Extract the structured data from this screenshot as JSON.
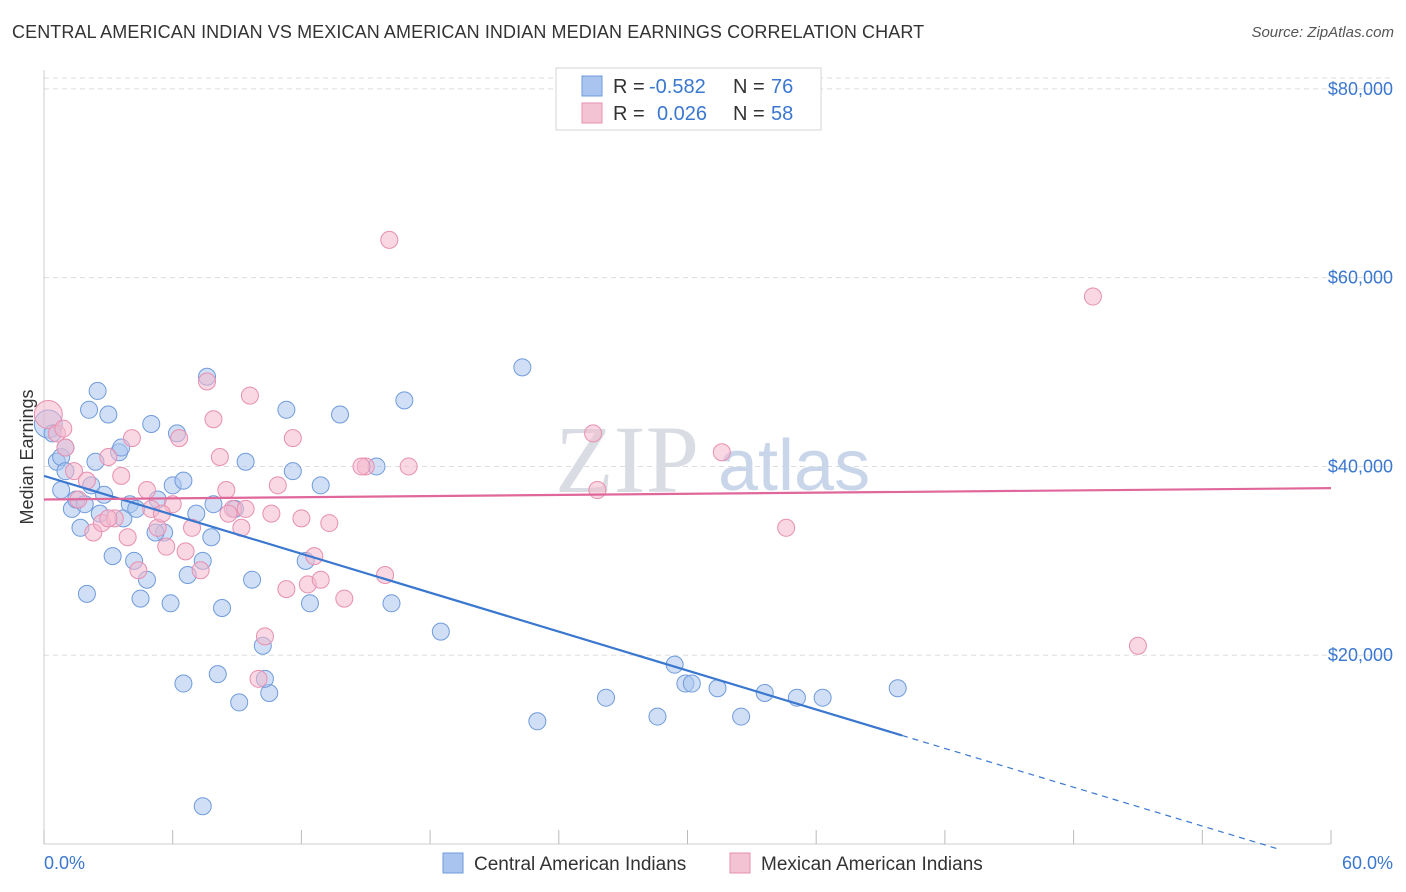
{
  "title": "CENTRAL AMERICAN INDIAN VS MEXICAN AMERICAN INDIAN MEDIAN EARNINGS CORRELATION CHART",
  "source": "Source: ZipAtlas.com",
  "watermark": {
    "zip": "ZIP",
    "atlas": "atlas"
  },
  "colors": {
    "blue": "#3a77cf",
    "blue_fill": "#a9c4ee",
    "pink": "#e0679a",
    "pink_fill": "#f4b8cc",
    "grid": "#dddddd"
  },
  "legend": {
    "rows": [
      {
        "r_label": "R =",
        "r_value": "-0.582",
        "n_label": "N =",
        "n_value": "76"
      },
      {
        "r_label": "R =",
        "r_value": "0.026",
        "n_label": "N =",
        "n_value": "58"
      }
    ]
  },
  "bottom_legend": [
    "Central American Indians",
    "Mexican American Indians"
  ],
  "chart_data": {
    "type": "scatter",
    "title": "CENTRAL AMERICAN INDIAN VS MEXICAN AMERICAN INDIAN MEDIAN EARNINGS CORRELATION CHART",
    "xlabel": "",
    "ylabel": "Median Earnings",
    "x_tick_labels": [
      "0.0%",
      "60.0%"
    ],
    "y_tick_labels": [
      "$20,000",
      "$40,000",
      "$60,000",
      "$80,000"
    ],
    "xlim": [
      0,
      60
    ],
    "ylim": [
      0,
      82000
    ],
    "grid": true,
    "legend_position": "top-center",
    "series": [
      {
        "name": "Central American Indians",
        "r": -0.582,
        "n": 76,
        "trend": {
          "x0": 0,
          "y0": 39000,
          "x1": 40,
          "y1": 11500,
          "dashed_to_x": 57.5,
          "dashed_to_y": -500
        },
        "points": [
          [
            0.2,
            44500
          ],
          [
            0.4,
            43500
          ],
          [
            0.6,
            40500
          ],
          [
            0.8,
            41000
          ],
          [
            1.0,
            39500
          ],
          [
            1.3,
            35500
          ],
          [
            1.5,
            36500
          ],
          [
            1.7,
            33500
          ],
          [
            1.9,
            36000
          ],
          [
            2.1,
            46000
          ],
          [
            2.4,
            40500
          ],
          [
            2.6,
            35000
          ],
          [
            2.8,
            37000
          ],
          [
            3.0,
            45500
          ],
          [
            3.2,
            30500
          ],
          [
            3.5,
            41500
          ],
          [
            3.7,
            34500
          ],
          [
            4.0,
            36000
          ],
          [
            4.2,
            30000
          ],
          [
            4.5,
            26000
          ],
          [
            4.8,
            28000
          ],
          [
            5.0,
            44500
          ],
          [
            5.3,
            36500
          ],
          [
            5.6,
            33000
          ],
          [
            5.9,
            25500
          ],
          [
            6.2,
            43500
          ],
          [
            6.5,
            17000
          ],
          [
            6.7,
            28500
          ],
          [
            7.1,
            35000
          ],
          [
            7.4,
            30000
          ],
          [
            7.6,
            49500
          ],
          [
            7.8,
            32500
          ],
          [
            8.1,
            18000
          ],
          [
            8.3,
            25000
          ],
          [
            8.9,
            35500
          ],
          [
            9.1,
            15000
          ],
          [
            9.4,
            40500
          ],
          [
            9.7,
            28000
          ],
          [
            10.2,
            21000
          ],
          [
            10.5,
            16000
          ],
          [
            11.3,
            46000
          ],
          [
            11.6,
            39500
          ],
          [
            12.4,
            25500
          ],
          [
            12.9,
            38000
          ],
          [
            13.8,
            45500
          ],
          [
            15.5,
            40000
          ],
          [
            16.2,
            25500
          ],
          [
            16.8,
            47000
          ],
          [
            18.5,
            22500
          ],
          [
            22.3,
            50500
          ],
          [
            23.0,
            13000
          ],
          [
            26.2,
            15500
          ],
          [
            28.6,
            13500
          ],
          [
            29.4,
            19000
          ],
          [
            29.9,
            17000
          ],
          [
            30.2,
            17000
          ],
          [
            31.4,
            16500
          ],
          [
            32.5,
            13500
          ],
          [
            33.6,
            16000
          ],
          [
            35.1,
            15500
          ],
          [
            36.3,
            15500
          ],
          [
            39.8,
            16500
          ],
          [
            7.4,
            4000
          ],
          [
            2.5,
            48000
          ],
          [
            1.0,
            42000
          ],
          [
            3.6,
            42000
          ],
          [
            6.0,
            38000
          ],
          [
            0.8,
            37500
          ],
          [
            2.2,
            38000
          ],
          [
            4.3,
            35500
          ],
          [
            5.2,
            33000
          ],
          [
            6.5,
            38500
          ],
          [
            7.9,
            36000
          ],
          [
            10.3,
            17500
          ],
          [
            12.2,
            30000
          ],
          [
            2.0,
            26500
          ]
        ]
      },
      {
        "name": "Mexican American Indians",
        "r": 0.026,
        "n": 58,
        "trend": {
          "x0": 0,
          "y0": 36500,
          "x1": 60,
          "y1": 37700
        },
        "points": [
          [
            0.2,
            45500
          ],
          [
            0.6,
            43500
          ],
          [
            1.0,
            42000
          ],
          [
            1.4,
            39500
          ],
          [
            1.6,
            36500
          ],
          [
            2.0,
            38500
          ],
          [
            2.3,
            33000
          ],
          [
            2.7,
            34000
          ],
          [
            3.0,
            41000
          ],
          [
            3.3,
            34500
          ],
          [
            3.6,
            39000
          ],
          [
            3.9,
            32500
          ],
          [
            4.1,
            43000
          ],
          [
            4.4,
            29000
          ],
          [
            4.8,
            37500
          ],
          [
            5.0,
            35500
          ],
          [
            5.3,
            33500
          ],
          [
            5.7,
            31500
          ],
          [
            6.0,
            36000
          ],
          [
            6.3,
            43000
          ],
          [
            6.6,
            31000
          ],
          [
            6.9,
            33500
          ],
          [
            7.3,
            29000
          ],
          [
            7.6,
            49000
          ],
          [
            7.9,
            45000
          ],
          [
            8.2,
            41000
          ],
          [
            8.5,
            37500
          ],
          [
            8.8,
            35500
          ],
          [
            9.2,
            33500
          ],
          [
            9.6,
            47500
          ],
          [
            10.0,
            17500
          ],
          [
            10.3,
            22000
          ],
          [
            10.6,
            35000
          ],
          [
            10.9,
            38000
          ],
          [
            11.3,
            27000
          ],
          [
            11.6,
            43000
          ],
          [
            12.0,
            34500
          ],
          [
            12.3,
            27500
          ],
          [
            12.6,
            30500
          ],
          [
            12.9,
            28000
          ],
          [
            13.3,
            34000
          ],
          [
            14.0,
            26000
          ],
          [
            15.0,
            40000
          ],
          [
            15.9,
            28500
          ],
          [
            16.1,
            64000
          ],
          [
            17.0,
            40000
          ],
          [
            25.6,
            43500
          ],
          [
            25.8,
            37500
          ],
          [
            31.6,
            41500
          ],
          [
            34.6,
            33500
          ],
          [
            48.9,
            58000
          ],
          [
            51.0,
            21000
          ],
          [
            3.0,
            34500
          ],
          [
            5.5,
            35000
          ],
          [
            8.6,
            35000
          ],
          [
            9.4,
            35500
          ],
          [
            14.8,
            40000
          ],
          [
            0.9,
            44000
          ]
        ]
      }
    ]
  }
}
